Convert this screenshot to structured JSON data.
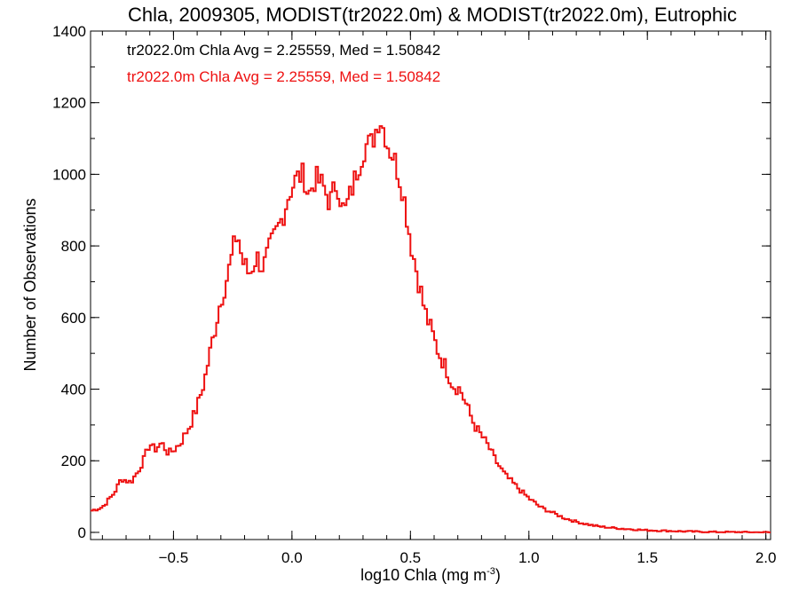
{
  "chart_data": {
    "type": "line",
    "title": "Chla, 2009305, MODIST(tr2022.0m) & MODIST(tr2022.0m), Eutrophic",
    "xlabel_main": "log10 Chla (mg m",
    "xlabel_sup": "-3",
    "xlabel_close": ")",
    "ylabel": "Number of Observations",
    "xlim": [
      -0.85,
      2.02
    ],
    "ylim": [
      -20,
      1400
    ],
    "xticks": [
      -0.5,
      0.0,
      0.5,
      1.0,
      1.5,
      2.0
    ],
    "xtick_labels": [
      "−0.5",
      "0.0",
      "0.5",
      "1.0",
      "1.5",
      "2.0"
    ],
    "yticks": [
      0,
      200,
      400,
      600,
      800,
      1000,
      1200,
      1400
    ],
    "ytick_labels": [
      "0",
      "200",
      "400",
      "600",
      "800",
      "1000",
      "1200",
      "1400"
    ],
    "legend": [
      {
        "text": "tr2022.0m Chla Avg = 2.25559, Med = 1.50842",
        "color": "#000000"
      },
      {
        "text": "tr2022.0m Chla Avg = 2.25559, Med = 1.50842",
        "color": "#ee1111"
      }
    ],
    "legend_position": "top-left",
    "series": [
      {
        "color": "#ee1111",
        "style": "step",
        "points": [
          [
            -0.85,
            60
          ],
          [
            -0.8,
            70
          ],
          [
            -0.75,
            110
          ],
          [
            -0.72,
            150
          ],
          [
            -0.68,
            140
          ],
          [
            -0.65,
            170
          ],
          [
            -0.62,
            210
          ],
          [
            -0.6,
            250
          ],
          [
            -0.58,
            230
          ],
          [
            -0.55,
            250
          ],
          [
            -0.52,
            220
          ],
          [
            -0.5,
            230
          ],
          [
            -0.47,
            250
          ],
          [
            -0.43,
            300
          ],
          [
            -0.4,
            350
          ],
          [
            -0.37,
            420
          ],
          [
            -0.34,
            520
          ],
          [
            -0.3,
            650
          ],
          [
            -0.27,
            720
          ],
          [
            -0.25,
            780
          ],
          [
            -0.23,
            840
          ],
          [
            -0.21,
            760
          ],
          [
            -0.18,
            720
          ],
          [
            -0.15,
            770
          ],
          [
            -0.12,
            740
          ],
          [
            -0.1,
            780
          ],
          [
            -0.07,
            830
          ],
          [
            -0.04,
            880
          ],
          [
            -0.01,
            950
          ],
          [
            0.02,
            990
          ],
          [
            0.05,
            1000
          ],
          [
            0.07,
            940
          ],
          [
            0.1,
            990
          ],
          [
            0.13,
            970
          ],
          [
            0.16,
            920
          ],
          [
            0.19,
            980
          ],
          [
            0.22,
            890
          ],
          [
            0.25,
            950
          ],
          [
            0.28,
            1020
          ],
          [
            0.31,
            1080
          ],
          [
            0.34,
            1090
          ],
          [
            0.37,
            1160
          ],
          [
            0.39,
            1120
          ],
          [
            0.41,
            1070
          ],
          [
            0.43,
            1050
          ],
          [
            0.45,
            1000
          ],
          [
            0.47,
            950
          ],
          [
            0.49,
            860
          ],
          [
            0.51,
            780
          ],
          [
            0.53,
            720
          ],
          [
            0.56,
            620
          ],
          [
            0.59,
            560
          ],
          [
            0.62,
            500
          ],
          [
            0.65,
            460
          ],
          [
            0.68,
            410
          ],
          [
            0.71,
            400
          ],
          [
            0.74,
            350
          ],
          [
            0.77,
            300
          ],
          [
            0.8,
            270
          ],
          [
            0.83,
            240
          ],
          [
            0.86,
            200
          ],
          [
            0.9,
            160
          ],
          [
            0.93,
            140
          ],
          [
            0.96,
            120
          ],
          [
            1.0,
            95
          ],
          [
            1.05,
            70
          ],
          [
            1.1,
            55
          ],
          [
            1.15,
            40
          ],
          [
            1.2,
            30
          ],
          [
            1.25,
            22
          ],
          [
            1.3,
            16
          ],
          [
            1.4,
            10
          ],
          [
            1.5,
            6
          ],
          [
            1.6,
            4
          ],
          [
            1.7,
            2
          ],
          [
            1.8,
            1
          ],
          [
            2.02,
            0
          ]
        ]
      }
    ]
  }
}
